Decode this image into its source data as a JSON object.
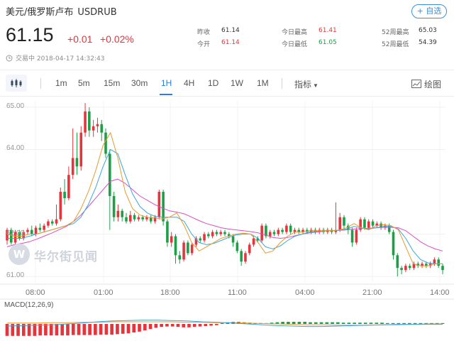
{
  "header": {
    "pair_name": "美元/俄罗斯卢布",
    "pair_code": "USDRUB",
    "watch_label": "+ 自选",
    "price": "61.15",
    "change": "+0.01",
    "change_pct": "+0.02%",
    "status": "交易中 2018-04-17 14:32:43"
  },
  "stats": {
    "prev_close_label": "昨收",
    "prev_close": "61.14",
    "open_label": "今开",
    "open": "61.14",
    "high_label": "今日最高",
    "high": "61.41",
    "low_label": "今日最低",
    "low": "61.05",
    "w52_high_label": "52周最高",
    "w52_high": "65.03",
    "w52_low_label": "52周最低",
    "w52_low": "54.39"
  },
  "toolbar": {
    "tabs": [
      "1m",
      "5m",
      "15m",
      "30m",
      "1H",
      "4H",
      "1D",
      "1W",
      "1M"
    ],
    "active_tab": "1H",
    "indicators_label": "指标",
    "draw_label": "绘图"
  },
  "watermark": {
    "logo_letter": "W",
    "text": "华尔街见闻"
  },
  "colors": {
    "up": "#e5343b",
    "down": "#1ca046",
    "accent": "#2f7fd0",
    "ma_short": "#e89a2c",
    "ma_mid": "#3aa6e0",
    "ma_long": "#d94fc2"
  },
  "chart_data": {
    "type": "candlestick",
    "timeframe": "1H",
    "y_ticks": [
      "65.00",
      "64.00",
      "62.00",
      "61.00"
    ],
    "ylim": [
      60.85,
      65.15
    ],
    "x_ticks": [
      "08:00",
      "01:00",
      "18:00",
      "11:00",
      "04:00",
      "21:00",
      "14:00"
    ],
    "candles": [
      [
        61.85,
        62.1,
        62.15,
        61.75
      ],
      [
        62.1,
        61.8,
        62.15,
        61.75
      ],
      [
        61.8,
        62.05,
        62.1,
        61.75
      ],
      [
        62.05,
        61.9,
        62.1,
        61.85
      ],
      [
        61.9,
        62.05,
        62.1,
        61.85
      ],
      [
        62.05,
        62.1,
        62.15,
        62.0
      ],
      [
        62.1,
        62.0,
        62.2,
        61.95
      ],
      [
        62.0,
        62.15,
        62.2,
        61.95
      ],
      [
        62.15,
        62.1,
        62.25,
        62.05
      ],
      [
        62.1,
        62.2,
        62.25,
        62.05
      ],
      [
        62.2,
        62.3,
        62.35,
        62.15
      ],
      [
        62.3,
        62.25,
        62.35,
        62.2
      ],
      [
        62.25,
        62.35,
        62.7,
        62.2
      ],
      [
        62.35,
        63.0,
        63.1,
        62.3
      ],
      [
        63.0,
        62.85,
        63.3,
        62.7
      ],
      [
        62.85,
        63.4,
        63.6,
        62.8
      ],
      [
        63.4,
        63.8,
        64.5,
        63.3
      ],
      [
        63.8,
        63.6,
        64.4,
        63.4
      ],
      [
        63.6,
        64.4,
        64.55,
        63.5
      ],
      [
        64.4,
        64.9,
        65.1,
        64.3
      ],
      [
        64.9,
        64.45,
        65.0,
        64.3
      ],
      [
        64.45,
        64.55,
        64.7,
        64.3
      ],
      [
        64.55,
        64.6,
        64.75,
        64.4
      ],
      [
        64.6,
        64.4,
        64.7,
        64.2
      ],
      [
        64.4,
        63.9,
        64.5,
        63.8
      ],
      [
        63.9,
        62.9,
        64.0,
        62.1
      ],
      [
        62.9,
        62.4,
        63.0,
        62.3
      ],
      [
        62.4,
        62.55,
        62.7,
        62.3
      ],
      [
        62.55,
        62.4,
        62.6,
        62.3
      ],
      [
        62.4,
        62.3,
        62.5,
        62.25
      ],
      [
        62.3,
        62.45,
        62.55,
        62.25
      ],
      [
        62.45,
        62.35,
        62.5,
        62.3
      ],
      [
        62.35,
        62.4,
        62.45,
        62.3
      ],
      [
        62.4,
        62.35,
        62.45,
        62.3
      ],
      [
        62.35,
        62.4,
        62.45,
        62.3
      ],
      [
        62.4,
        62.3,
        62.45,
        62.25
      ],
      [
        62.3,
        62.4,
        62.45,
        62.25
      ],
      [
        62.4,
        63.0,
        63.05,
        62.35
      ],
      [
        63.0,
        62.3,
        63.05,
        62.2
      ],
      [
        62.3,
        61.8,
        62.35,
        61.7
      ],
      [
        61.8,
        61.95,
        62.05,
        61.7
      ],
      [
        61.95,
        61.5,
        62.0,
        61.3
      ],
      [
        61.5,
        61.4,
        61.6,
        61.3
      ],
      [
        61.4,
        61.8,
        61.85,
        61.35
      ],
      [
        61.8,
        61.55,
        61.85,
        61.5
      ],
      [
        61.55,
        61.75,
        61.8,
        61.5
      ],
      [
        61.75,
        61.9,
        61.95,
        61.7
      ],
      [
        61.9,
        61.85,
        61.95,
        61.8
      ],
      [
        61.85,
        62.0,
        62.05,
        61.8
      ],
      [
        62.0,
        61.95,
        62.05,
        61.9
      ],
      [
        61.95,
        62.05,
        62.1,
        61.9
      ],
      [
        62.05,
        62.0,
        62.1,
        61.95
      ],
      [
        62.0,
        62.05,
        62.1,
        61.95
      ],
      [
        62.05,
        62.0,
        62.1,
        61.95
      ],
      [
        62.0,
        61.95,
        62.05,
        61.9
      ],
      [
        61.95,
        61.8,
        62.0,
        61.7
      ],
      [
        61.8,
        61.6,
        61.85,
        61.55
      ],
      [
        61.6,
        61.35,
        61.65,
        61.25
      ],
      [
        61.35,
        61.55,
        61.6,
        61.3
      ],
      [
        61.55,
        61.75,
        61.8,
        61.5
      ],
      [
        61.75,
        61.9,
        61.95,
        61.7
      ],
      [
        61.9,
        61.85,
        61.95,
        61.8
      ],
      [
        61.85,
        62.2,
        62.25,
        61.8
      ],
      [
        62.2,
        61.95,
        62.25,
        61.9
      ],
      [
        61.95,
        62.05,
        62.1,
        61.9
      ],
      [
        62.05,
        62.0,
        62.1,
        61.95
      ],
      [
        62.0,
        62.1,
        62.15,
        61.95
      ],
      [
        62.1,
        62.05,
        62.15,
        62.0
      ],
      [
        62.05,
        62.2,
        62.25,
        62.0
      ],
      [
        62.2,
        62.05,
        62.25,
        62.0
      ],
      [
        62.05,
        62.1,
        62.15,
        62.0
      ],
      [
        62.1,
        62.05,
        62.15,
        62.0
      ],
      [
        62.05,
        62.1,
        62.15,
        62.0
      ],
      [
        62.1,
        62.05,
        62.15,
        62.0
      ],
      [
        62.05,
        62.1,
        62.15,
        62.0
      ],
      [
        62.1,
        62.05,
        62.15,
        62.0
      ],
      [
        62.05,
        62.1,
        62.15,
        62.0
      ],
      [
        62.1,
        62.05,
        62.15,
        62.0
      ],
      [
        62.05,
        62.1,
        62.15,
        62.0
      ],
      [
        62.1,
        62.05,
        62.15,
        62.0
      ],
      [
        62.05,
        62.1,
        62.75,
        62.0
      ],
      [
        62.1,
        62.4,
        62.5,
        62.05
      ],
      [
        62.4,
        62.2,
        62.45,
        62.1
      ],
      [
        62.2,
        62.1,
        62.25,
        62.0
      ],
      [
        62.1,
        61.8,
        62.15,
        61.7
      ],
      [
        61.8,
        62.1,
        62.15,
        61.75
      ],
      [
        62.1,
        62.35,
        62.4,
        62.05
      ],
      [
        62.35,
        62.15,
        62.4,
        62.1
      ],
      [
        62.15,
        62.3,
        62.35,
        62.1
      ],
      [
        62.3,
        62.2,
        62.35,
        62.15
      ],
      [
        62.2,
        62.25,
        62.3,
        62.15
      ],
      [
        62.25,
        62.15,
        62.3,
        62.1
      ],
      [
        62.15,
        62.2,
        62.25,
        62.1
      ],
      [
        62.2,
        62.05,
        62.25,
        62.0
      ],
      [
        62.05,
        61.5,
        62.1,
        61.4
      ],
      [
        61.5,
        61.2,
        61.55,
        61.0
      ],
      [
        61.2,
        61.15,
        61.25,
        61.05
      ],
      [
        61.15,
        61.25,
        61.3,
        61.1
      ],
      [
        61.25,
        61.2,
        61.3,
        61.15
      ],
      [
        61.2,
        61.3,
        61.35,
        61.15
      ],
      [
        61.3,
        61.25,
        61.35,
        61.2
      ],
      [
        61.25,
        61.3,
        61.35,
        61.2
      ],
      [
        61.3,
        61.25,
        61.35,
        61.2
      ],
      [
        61.25,
        61.3,
        61.35,
        61.2
      ],
      [
        61.3,
        61.4,
        61.45,
        61.25
      ],
      [
        61.4,
        61.25,
        61.45,
        61.2
      ],
      [
        61.25,
        61.15,
        61.3,
        61.05
      ]
    ],
    "ma": {
      "short": [
        62.0,
        61.95,
        61.95,
        62.0,
        62.0,
        62.05,
        62.1,
        62.15,
        62.2,
        62.3,
        62.6,
        63.0,
        63.5,
        64.1,
        64.4,
        63.8,
        63.0,
        62.6,
        62.45,
        62.4,
        62.38,
        62.36,
        62.4,
        62.5,
        62.2,
        61.8,
        61.6,
        61.7,
        61.8,
        61.9,
        61.95,
        62.0,
        62.02,
        62.0,
        61.8,
        61.55,
        61.6,
        61.8,
        61.95,
        62.05,
        62.05,
        62.08,
        62.08,
        62.08,
        62.08,
        62.1,
        62.15,
        62.25,
        62.15,
        62.1,
        62.2,
        62.22,
        62.2,
        62.1,
        61.7,
        61.3,
        61.25,
        61.25,
        61.3,
        61.3
      ],
      "mid": [
        61.9,
        61.9,
        61.9,
        61.95,
        62.0,
        62.05,
        62.1,
        62.15,
        62.2,
        62.25,
        62.4,
        62.7,
        63.1,
        63.6,
        64.0,
        63.9,
        63.4,
        62.95,
        62.65,
        62.5,
        62.42,
        62.4,
        62.4,
        62.4,
        62.3,
        62.0,
        61.8,
        61.75,
        61.78,
        61.85,
        61.92,
        61.98,
        62.0,
        62.0,
        61.9,
        61.7,
        61.65,
        61.72,
        61.85,
        61.95,
        62.0,
        62.05,
        62.07,
        62.08,
        62.08,
        62.09,
        62.12,
        62.18,
        62.15,
        62.12,
        62.15,
        62.18,
        62.18,
        62.12,
        61.9,
        61.6,
        61.4,
        61.32,
        61.3,
        61.3
      ],
      "long": [
        61.7,
        61.75,
        61.78,
        61.82,
        61.88,
        61.95,
        62.02,
        62.1,
        62.18,
        62.3,
        62.45,
        62.65,
        62.85,
        63.05,
        63.25,
        63.3,
        63.2,
        63.05,
        62.9,
        62.8,
        62.7,
        62.62,
        62.55,
        62.52,
        62.48,
        62.4,
        62.32,
        62.25,
        62.2,
        62.15,
        62.12,
        62.1,
        62.08,
        62.06,
        62.03,
        61.98,
        61.92,
        61.9,
        61.92,
        61.96,
        62.0,
        62.03,
        62.05,
        62.07,
        62.08,
        62.09,
        62.1,
        62.12,
        62.13,
        62.14,
        62.15,
        62.16,
        62.16,
        62.15,
        62.08,
        61.95,
        61.82,
        61.72,
        61.65,
        61.6
      ]
    },
    "macd": {
      "label": "MACD(12,26,9)",
      "hist": [
        -0.28,
        -0.28,
        -0.28,
        -0.28,
        -0.28,
        -0.28,
        -0.27,
        -0.27,
        -0.27,
        -0.27,
        -0.27,
        -0.27,
        -0.26,
        -0.26,
        -0.26,
        -0.26,
        -0.26,
        -0.25,
        -0.25,
        -0.25,
        -0.24,
        -0.23,
        -0.22,
        -0.2,
        -0.18,
        -0.15,
        -0.12,
        -0.09,
        -0.07,
        -0.06,
        -0.06,
        -0.07,
        -0.08,
        -0.08,
        -0.07,
        -0.06,
        -0.05,
        -0.04,
        -0.03,
        0.02,
        0.04,
        0.05,
        0.05,
        0.04,
        0.03,
        0.02,
        0.02,
        0.02,
        0.03,
        0.04,
        0.05,
        0.05,
        0.05,
        0.05,
        0.05,
        0.04,
        0.04,
        0.04,
        0.04,
        0.04,
        0.04,
        0.03,
        0.03,
        0.03,
        0.03,
        0.03,
        0.03,
        0.03,
        0.03,
        0.02,
        0.02,
        0.02,
        0.02,
        0.02,
        0.02,
        0.02,
        0.02,
        0.02,
        0.02,
        0.02
      ],
      "dif": [
        -0.05,
        -0.04,
        -0.03,
        -0.02,
        0.0,
        0.02,
        0.05,
        0.07,
        0.08,
        0.09,
        0.09,
        0.08,
        0.07,
        0.05,
        0.04,
        0.02,
        0.0,
        -0.02,
        -0.04,
        -0.05,
        -0.06,
        -0.06,
        -0.05,
        -0.04,
        -0.03,
        -0.02,
        -0.01,
        -0.01,
        0.0,
        0.0
      ],
      "dea": [
        0.02,
        0.02,
        0.02,
        0.03,
        0.03,
        0.04,
        0.04,
        0.05,
        0.05,
        0.05,
        0.05,
        0.05,
        0.04,
        0.04,
        0.03,
        0.03,
        0.02,
        0.01,
        0.0,
        -0.01,
        -0.02,
        -0.02,
        -0.03,
        -0.03,
        -0.03,
        -0.02,
        -0.02,
        -0.01,
        -0.01,
        -0.01
      ]
    }
  }
}
